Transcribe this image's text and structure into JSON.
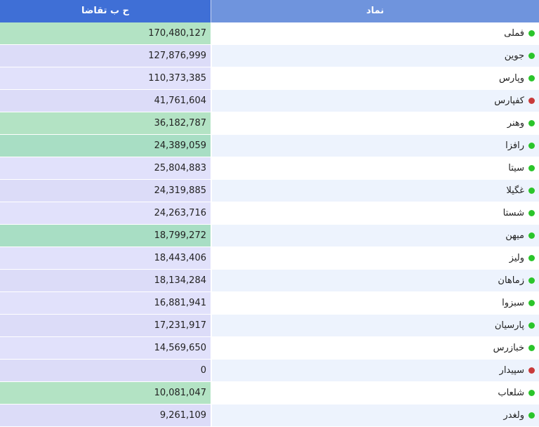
{
  "header": {
    "symbol_label": "نماد",
    "value_label": "ح ب تقاضا"
  },
  "colors": {
    "status_up": "#2bc52b",
    "status_down": "#c83a3a"
  },
  "rows": [
    {
      "symbol": "فملی",
      "status": "green",
      "value": "170,480,127",
      "highlight": "green"
    },
    {
      "symbol": "جوین",
      "status": "green",
      "value": "127,876,999",
      "highlight": "lavender"
    },
    {
      "symbol": "وپارس",
      "status": "green",
      "value": "110,373,385",
      "highlight": "lavender"
    },
    {
      "symbol": "کفپارس",
      "status": "red",
      "value": "41,761,604",
      "highlight": "lavender"
    },
    {
      "symbol": "وهنر",
      "status": "green",
      "value": "36,182,787",
      "highlight": "green"
    },
    {
      "symbol": "رافزا",
      "status": "green",
      "value": "24,389,059",
      "highlight": "green"
    },
    {
      "symbol": "سیتا",
      "status": "green",
      "value": "25,804,883",
      "highlight": "lavender"
    },
    {
      "symbol": "غگیلا",
      "status": "green",
      "value": "24,319,885",
      "highlight": "lavender"
    },
    {
      "symbol": "شستا",
      "status": "green",
      "value": "24,263,716",
      "highlight": "lavender"
    },
    {
      "symbol": "میهن",
      "status": "green",
      "value": "18,799,272",
      "highlight": "green"
    },
    {
      "symbol": "ولیز",
      "status": "green",
      "value": "18,443,406",
      "highlight": "lavender"
    },
    {
      "symbol": "زماهان",
      "status": "green",
      "value": "18,134,284",
      "highlight": "lavender"
    },
    {
      "symbol": "سبزوا",
      "status": "green",
      "value": "16,881,941",
      "highlight": "lavender"
    },
    {
      "symbol": "پارسیان",
      "status": "green",
      "value": "17,231,917",
      "highlight": "lavender"
    },
    {
      "symbol": "خبازرس",
      "status": "green",
      "value": "14,569,650",
      "highlight": "lavender"
    },
    {
      "symbol": "سپیدار",
      "status": "red",
      "value": "0",
      "highlight": "lavender"
    },
    {
      "symbol": "شلعاب",
      "status": "green",
      "value": "10,081,047",
      "highlight": "green"
    },
    {
      "symbol": "ولغدر",
      "status": "green",
      "value": "9,261,109",
      "highlight": "lavender"
    }
  ]
}
